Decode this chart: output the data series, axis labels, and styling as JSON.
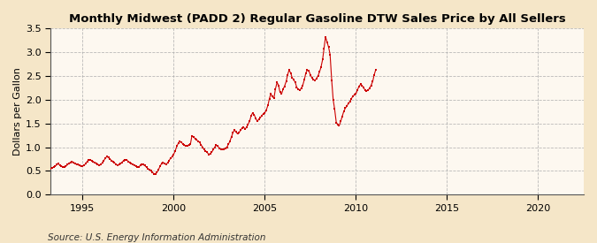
{
  "title": "Monthly Midwest (PADD 2) Regular Gasoline DTW Sales Price by All Sellers",
  "ylabel": "Dollars per Gallon",
  "source": "Source: U.S. Energy Information Administration",
  "figure_bg": "#f5e6c8",
  "axes_bg": "#fdf8f0",
  "dot_color": "#cc0000",
  "line_color": "#cc0000",
  "grid_color": "#aaaaaa",
  "xlim_left": 1993.25,
  "xlim_right": 2022.5,
  "ylim_bottom": 0.0,
  "ylim_top": 3.5,
  "xticks": [
    1995,
    2000,
    2005,
    2010,
    2015,
    2020
  ],
  "yticks": [
    0.0,
    0.5,
    1.0,
    1.5,
    2.0,
    2.5,
    3.0,
    3.5
  ],
  "data": [
    [
      1993.25,
      0.55
    ],
    [
      1993.33,
      0.57
    ],
    [
      1993.42,
      0.58
    ],
    [
      1993.5,
      0.6
    ],
    [
      1993.58,
      0.63
    ],
    [
      1993.67,
      0.65
    ],
    [
      1993.75,
      0.62
    ],
    [
      1993.83,
      0.6
    ],
    [
      1993.92,
      0.59
    ],
    [
      1994.0,
      0.58
    ],
    [
      1994.08,
      0.6
    ],
    [
      1994.17,
      0.63
    ],
    [
      1994.25,
      0.66
    ],
    [
      1994.33,
      0.68
    ],
    [
      1994.42,
      0.7
    ],
    [
      1994.5,
      0.67
    ],
    [
      1994.58,
      0.65
    ],
    [
      1994.67,
      0.64
    ],
    [
      1994.75,
      0.63
    ],
    [
      1994.83,
      0.61
    ],
    [
      1994.92,
      0.6
    ],
    [
      1995.0,
      0.6
    ],
    [
      1995.08,
      0.62
    ],
    [
      1995.17,
      0.65
    ],
    [
      1995.25,
      0.7
    ],
    [
      1995.33,
      0.73
    ],
    [
      1995.42,
      0.74
    ],
    [
      1995.5,
      0.71
    ],
    [
      1995.58,
      0.69
    ],
    [
      1995.67,
      0.68
    ],
    [
      1995.75,
      0.66
    ],
    [
      1995.83,
      0.64
    ],
    [
      1995.92,
      0.62
    ],
    [
      1996.0,
      0.63
    ],
    [
      1996.08,
      0.67
    ],
    [
      1996.17,
      0.72
    ],
    [
      1996.25,
      0.77
    ],
    [
      1996.33,
      0.8
    ],
    [
      1996.42,
      0.78
    ],
    [
      1996.5,
      0.75
    ],
    [
      1996.58,
      0.72
    ],
    [
      1996.67,
      0.7
    ],
    [
      1996.75,
      0.67
    ],
    [
      1996.83,
      0.64
    ],
    [
      1996.92,
      0.62
    ],
    [
      1997.0,
      0.63
    ],
    [
      1997.08,
      0.65
    ],
    [
      1997.17,
      0.68
    ],
    [
      1997.25,
      0.72
    ],
    [
      1997.33,
      0.74
    ],
    [
      1997.42,
      0.73
    ],
    [
      1997.5,
      0.7
    ],
    [
      1997.58,
      0.68
    ],
    [
      1997.67,
      0.66
    ],
    [
      1997.75,
      0.64
    ],
    [
      1997.83,
      0.62
    ],
    [
      1997.92,
      0.6
    ],
    [
      1998.0,
      0.58
    ],
    [
      1998.08,
      0.59
    ],
    [
      1998.17,
      0.61
    ],
    [
      1998.25,
      0.63
    ],
    [
      1998.33,
      0.63
    ],
    [
      1998.42,
      0.61
    ],
    [
      1998.5,
      0.58
    ],
    [
      1998.58,
      0.55
    ],
    [
      1998.67,
      0.52
    ],
    [
      1998.75,
      0.5
    ],
    [
      1998.83,
      0.47
    ],
    [
      1998.92,
      0.44
    ],
    [
      1999.0,
      0.44
    ],
    [
      1999.08,
      0.47
    ],
    [
      1999.17,
      0.53
    ],
    [
      1999.25,
      0.6
    ],
    [
      1999.33,
      0.65
    ],
    [
      1999.42,
      0.67
    ],
    [
      1999.5,
      0.65
    ],
    [
      1999.58,
      0.64
    ],
    [
      1999.67,
      0.67
    ],
    [
      1999.75,
      0.72
    ],
    [
      1999.83,
      0.77
    ],
    [
      1999.92,
      0.8
    ],
    [
      2000.0,
      0.85
    ],
    [
      2000.08,
      0.92
    ],
    [
      2000.17,
      1.02
    ],
    [
      2000.25,
      1.08
    ],
    [
      2000.33,
      1.12
    ],
    [
      2000.42,
      1.1
    ],
    [
      2000.5,
      1.07
    ],
    [
      2000.58,
      1.04
    ],
    [
      2000.67,
      1.02
    ],
    [
      2000.75,
      1.03
    ],
    [
      2000.83,
      1.05
    ],
    [
      2000.92,
      1.07
    ],
    [
      2001.0,
      1.24
    ],
    [
      2001.08,
      1.22
    ],
    [
      2001.17,
      1.18
    ],
    [
      2001.25,
      1.15
    ],
    [
      2001.33,
      1.13
    ],
    [
      2001.42,
      1.1
    ],
    [
      2001.5,
      1.05
    ],
    [
      2001.58,
      1.0
    ],
    [
      2001.67,
      0.95
    ],
    [
      2001.75,
      0.92
    ],
    [
      2001.83,
      0.89
    ],
    [
      2001.92,
      0.85
    ],
    [
      2002.0,
      0.86
    ],
    [
      2002.08,
      0.89
    ],
    [
      2002.17,
      0.95
    ],
    [
      2002.25,
      1.0
    ],
    [
      2002.33,
      1.04
    ],
    [
      2002.42,
      1.02
    ],
    [
      2002.5,
      0.98
    ],
    [
      2002.58,
      0.96
    ],
    [
      2002.67,
      0.95
    ],
    [
      2002.75,
      0.96
    ],
    [
      2002.83,
      0.98
    ],
    [
      2002.92,
      1.0
    ],
    [
      2003.0,
      1.06
    ],
    [
      2003.08,
      1.12
    ],
    [
      2003.17,
      1.22
    ],
    [
      2003.25,
      1.3
    ],
    [
      2003.33,
      1.36
    ],
    [
      2003.42,
      1.32
    ],
    [
      2003.5,
      1.28
    ],
    [
      2003.58,
      1.3
    ],
    [
      2003.67,
      1.36
    ],
    [
      2003.75,
      1.4
    ],
    [
      2003.83,
      1.42
    ],
    [
      2003.92,
      1.38
    ],
    [
      2004.0,
      1.42
    ],
    [
      2004.08,
      1.48
    ],
    [
      2004.17,
      1.55
    ],
    [
      2004.25,
      1.66
    ],
    [
      2004.33,
      1.72
    ],
    [
      2004.42,
      1.68
    ],
    [
      2004.5,
      1.6
    ],
    [
      2004.58,
      1.55
    ],
    [
      2004.67,
      1.58
    ],
    [
      2004.75,
      1.62
    ],
    [
      2004.83,
      1.66
    ],
    [
      2004.92,
      1.7
    ],
    [
      2005.0,
      1.72
    ],
    [
      2005.08,
      1.78
    ],
    [
      2005.17,
      1.88
    ],
    [
      2005.25,
      2.02
    ],
    [
      2005.33,
      2.12
    ],
    [
      2005.42,
      2.06
    ],
    [
      2005.5,
      2.03
    ],
    [
      2005.58,
      2.22
    ],
    [
      2005.67,
      2.36
    ],
    [
      2005.75,
      2.3
    ],
    [
      2005.83,
      2.16
    ],
    [
      2005.92,
      2.12
    ],
    [
      2006.0,
      2.22
    ],
    [
      2006.08,
      2.28
    ],
    [
      2006.17,
      2.38
    ],
    [
      2006.25,
      2.52
    ],
    [
      2006.33,
      2.62
    ],
    [
      2006.42,
      2.56
    ],
    [
      2006.5,
      2.46
    ],
    [
      2006.58,
      2.42
    ],
    [
      2006.67,
      2.36
    ],
    [
      2006.75,
      2.26
    ],
    [
      2006.83,
      2.22
    ],
    [
      2006.92,
      2.2
    ],
    [
      2007.0,
      2.24
    ],
    [
      2007.08,
      2.3
    ],
    [
      2007.17,
      2.42
    ],
    [
      2007.25,
      2.56
    ],
    [
      2007.33,
      2.62
    ],
    [
      2007.42,
      2.6
    ],
    [
      2007.5,
      2.52
    ],
    [
      2007.58,
      2.46
    ],
    [
      2007.67,
      2.42
    ],
    [
      2007.75,
      2.4
    ],
    [
      2007.83,
      2.44
    ],
    [
      2007.92,
      2.5
    ],
    [
      2008.0,
      2.58
    ],
    [
      2008.08,
      2.68
    ],
    [
      2008.17,
      2.84
    ],
    [
      2008.25,
      3.08
    ],
    [
      2008.33,
      3.32
    ],
    [
      2008.42,
      3.2
    ],
    [
      2008.5,
      3.1
    ],
    [
      2008.58,
      2.95
    ],
    [
      2008.67,
      2.4
    ],
    [
      2008.75,
      2.0
    ],
    [
      2008.83,
      1.8
    ],
    [
      2008.92,
      1.52
    ],
    [
      2009.0,
      1.48
    ],
    [
      2009.08,
      1.45
    ],
    [
      2009.17,
      1.55
    ],
    [
      2009.25,
      1.65
    ],
    [
      2009.33,
      1.75
    ],
    [
      2009.42,
      1.82
    ],
    [
      2009.5,
      1.86
    ],
    [
      2009.58,
      1.92
    ],
    [
      2009.67,
      1.96
    ],
    [
      2009.75,
      2.02
    ],
    [
      2009.83,
      2.07
    ],
    [
      2009.92,
      2.1
    ],
    [
      2010.0,
      2.12
    ],
    [
      2010.08,
      2.2
    ],
    [
      2010.17,
      2.28
    ],
    [
      2010.25,
      2.32
    ],
    [
      2010.33,
      2.3
    ],
    [
      2010.42,
      2.25
    ],
    [
      2010.5,
      2.2
    ],
    [
      2010.58,
      2.18
    ],
    [
      2010.67,
      2.2
    ],
    [
      2010.75,
      2.24
    ],
    [
      2010.83,
      2.3
    ],
    [
      2010.92,
      2.38
    ],
    [
      2011.0,
      2.52
    ],
    [
      2011.08,
      2.62
    ]
  ]
}
